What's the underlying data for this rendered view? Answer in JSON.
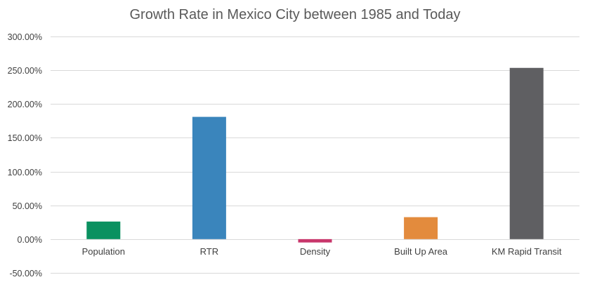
{
  "chart_data": {
    "type": "bar",
    "title": "Growth Rate in Mexico City between 1985 and Today",
    "xlabel": "",
    "ylabel": "",
    "categories": [
      "Population",
      "RTR",
      "Density",
      "Built Up Area",
      "KM Rapid Transit"
    ],
    "values": [
      26,
      181,
      -5,
      32.5,
      253.5
    ],
    "colors": [
      "#0a9160",
      "#3a85bc",
      "#c8366b",
      "#e38b3d",
      "#5f5f62"
    ],
    "ylim": [
      -50,
      300
    ],
    "yticks": [
      300,
      250,
      200,
      150,
      100,
      50,
      0,
      -50
    ],
    "ytick_labels": [
      "300.00%",
      "250.00%",
      "200.00%",
      "150.00%",
      "100.00%",
      "50.00%",
      "0.00%",
      "-50.00%"
    ],
    "grid": true,
    "legend": "none"
  }
}
